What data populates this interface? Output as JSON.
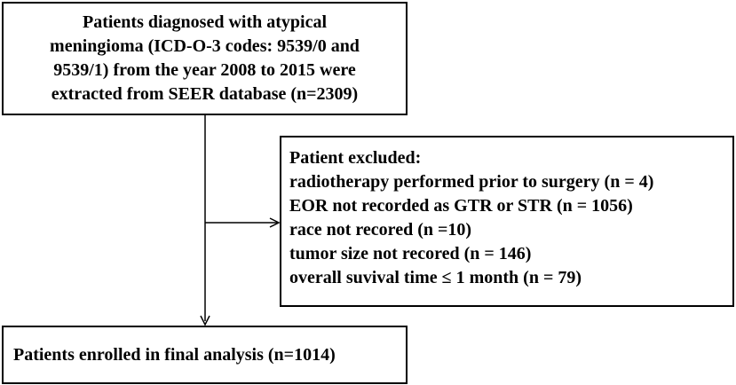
{
  "top_box": {
    "lines": [
      "Patients diagnosed with atypical",
      "meningioma (ICD-O-3 codes: 9539/0 and",
      "9539/1) from the year 2008 to 2015 were",
      "extracted from SEER database (n=2309)"
    ]
  },
  "excluded_box": {
    "lines": [
      "Patient excluded:",
      "radiotherapy performed prior to surgery (n = 4)",
      "EOR not recorded as GTR or STR (n = 1056)",
      "race not recored (n =10)",
      "tumor size not recored (n = 146)",
      "overall suvival time ≤ 1 month (n = 79)"
    ]
  },
  "final_box": {
    "lines": [
      "Patients enrolled in final analysis (n=1014)"
    ]
  },
  "colors": {
    "stroke": "#000000",
    "background": "#ffffff"
  }
}
